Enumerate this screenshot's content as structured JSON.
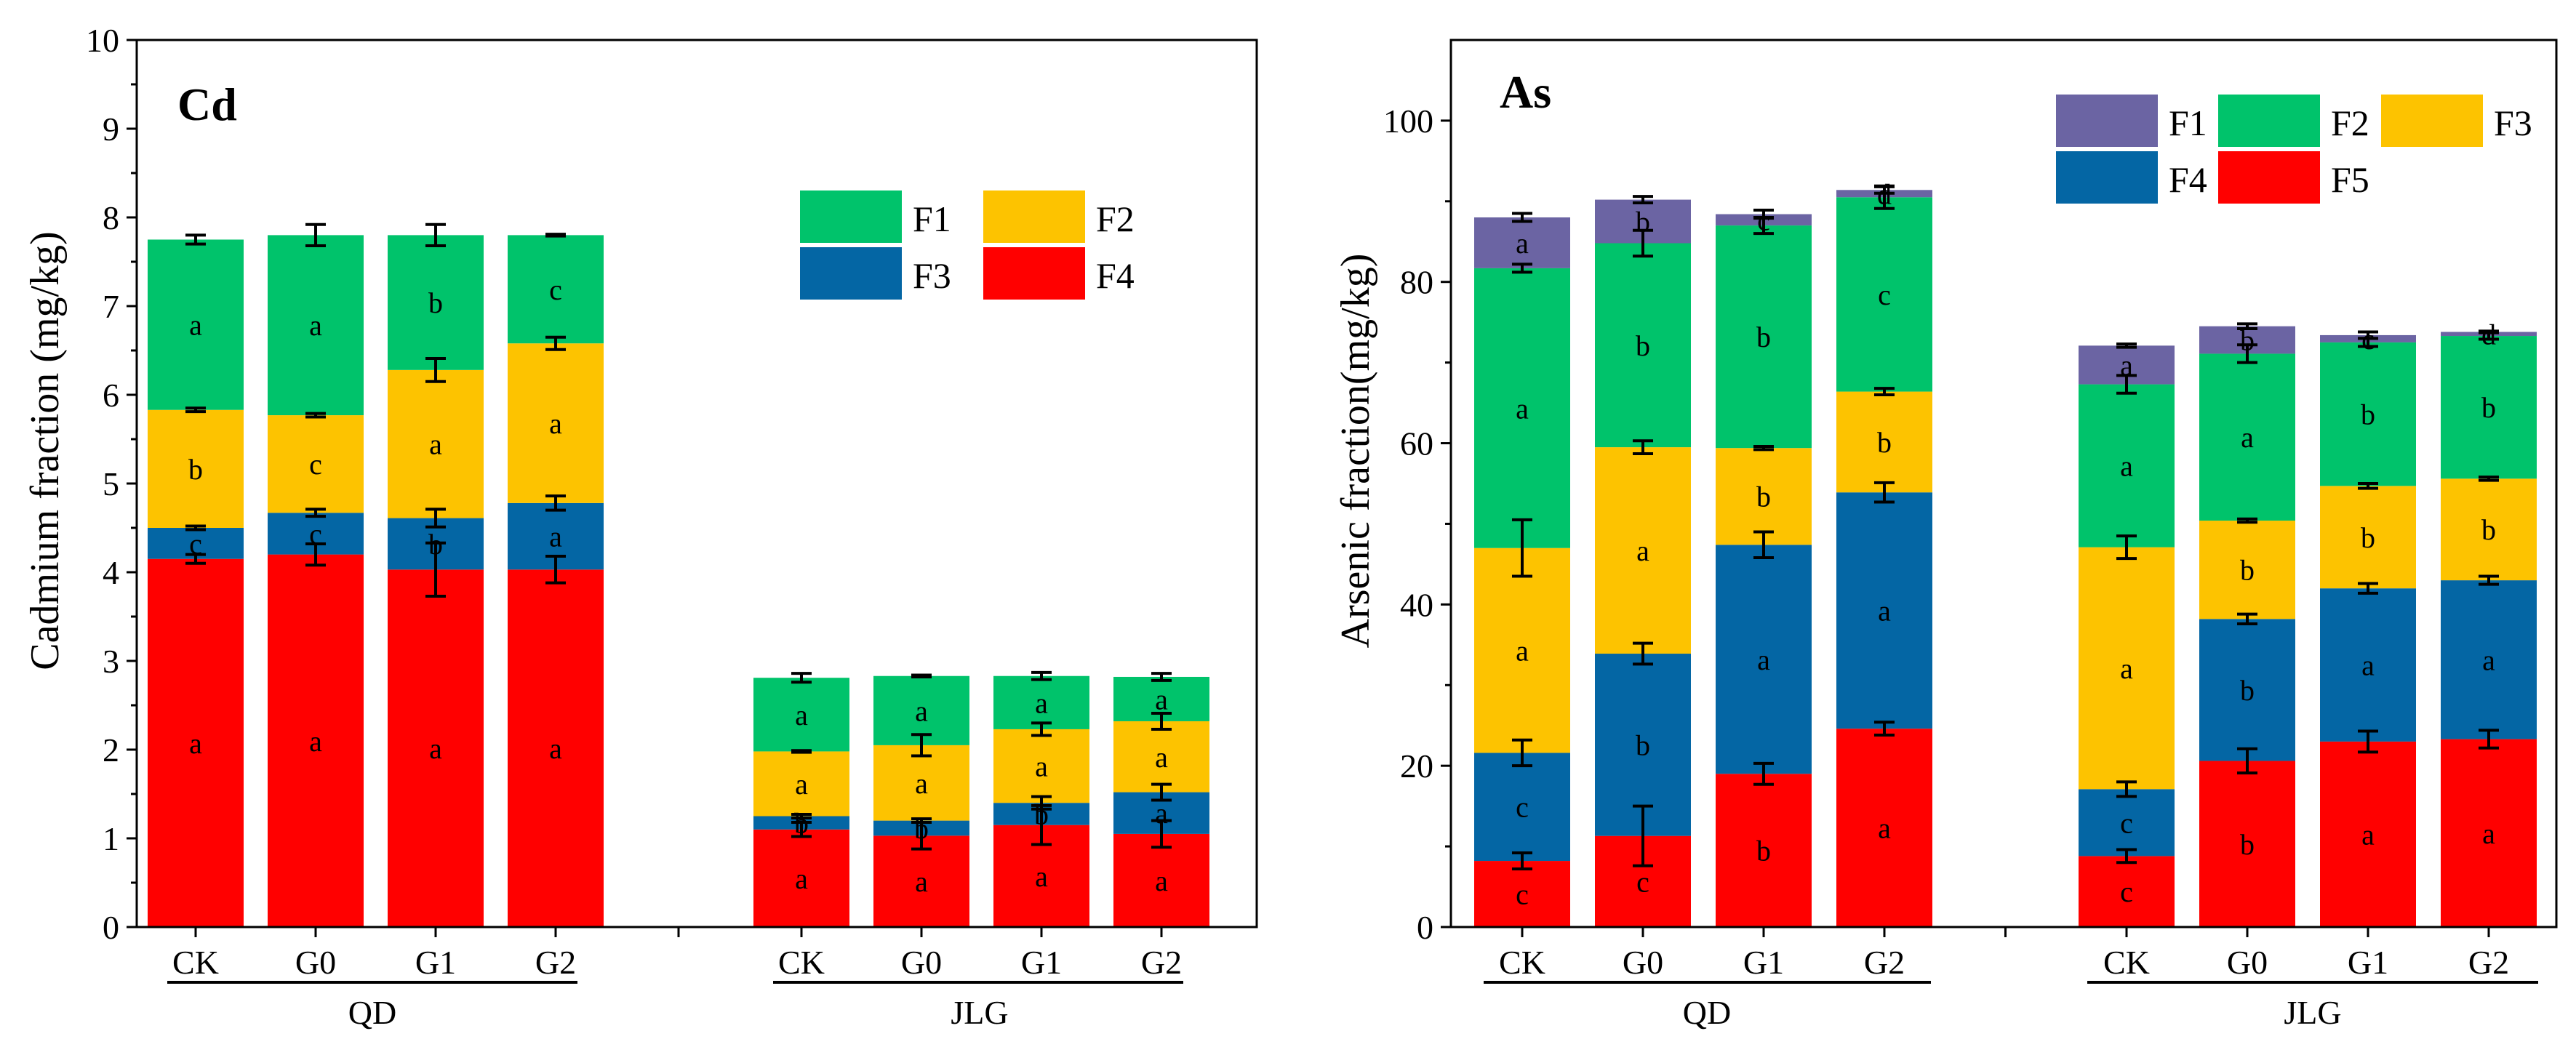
{
  "chart_data": [
    {
      "id": "cd",
      "type": "bar",
      "stacked": true,
      "title": "Cd",
      "xlabel": "",
      "ylabel": "Cadmium fraction (mg/kg)",
      "ylim": [
        0,
        10
      ],
      "yticks": [
        0,
        1,
        2,
        3,
        4,
        5,
        6,
        7,
        8,
        9,
        10
      ],
      "grid": false,
      "legend_position": "top-right",
      "groups": [
        {
          "name": "QD",
          "categories": [
            "CK",
            "G0",
            "G1",
            "G2"
          ]
        },
        {
          "name": "JLG",
          "categories": [
            "CK",
            "G0",
            "G1",
            "G2"
          ]
        }
      ],
      "series": [
        {
          "name": "F4",
          "color": "#ff0000",
          "values": [
            4.15,
            4.2,
            4.03,
            4.03,
            1.1,
            1.03,
            1.15,
            1.05
          ],
          "errors": [
            0.05,
            0.12,
            0.3,
            0.15,
            0.08,
            0.15,
            0.22,
            0.15
          ],
          "labels": [
            "a",
            "a",
            "a",
            "a",
            "a",
            "a",
            "a",
            "a"
          ]
        },
        {
          "name": "F3",
          "color": "#0466a4",
          "values": [
            0.35,
            0.47,
            0.58,
            0.75,
            0.15,
            0.17,
            0.25,
            0.47
          ],
          "errors": [
            0.02,
            0.04,
            0.1,
            0.08,
            0.02,
            0.02,
            0.07,
            0.09
          ],
          "labels": [
            "c",
            "c",
            "b",
            "a",
            "b",
            "b",
            "b",
            "a"
          ]
        },
        {
          "name": "F2",
          "color": "#fdc300",
          "values": [
            1.33,
            1.1,
            1.67,
            1.8,
            0.73,
            0.85,
            0.83,
            0.8
          ],
          "errors": [
            0.02,
            0.02,
            0.13,
            0.07,
            0.01,
            0.12,
            0.07,
            0.09
          ],
          "labels": [
            "b",
            "c",
            "a",
            "a",
            "a",
            "a",
            "a",
            "a"
          ]
        },
        {
          "name": "F1",
          "color": "#00c36b",
          "values": [
            1.92,
            2.03,
            1.52,
            1.22,
            0.83,
            0.78,
            0.6,
            0.5
          ],
          "errors": [
            0.05,
            0.12,
            0.12,
            0.01,
            0.05,
            0.01,
            0.04,
            0.04
          ],
          "labels": [
            "a",
            "a",
            "b",
            "c",
            "a",
            "a",
            "a",
            "a"
          ]
        }
      ],
      "legend_order": [
        "F1",
        "F2",
        "F3",
        "F4"
      ]
    },
    {
      "id": "as",
      "type": "bar",
      "stacked": true,
      "title": "As",
      "xlabel": "",
      "ylabel": "Arsenic fraction(mg/kg)",
      "ylim": [
        0,
        110
      ],
      "yticks": [
        0,
        20,
        40,
        60,
        80,
        100
      ],
      "grid": false,
      "legend_position": "top-right",
      "groups": [
        {
          "name": "QD",
          "categories": [
            "CK",
            "G0",
            "G1",
            "G2"
          ]
        },
        {
          "name": "JLG",
          "categories": [
            "CK",
            "G0",
            "G1",
            "G2"
          ]
        }
      ],
      "series": [
        {
          "name": "F5",
          "color": "#ff0000",
          "values": [
            8.2,
            11.3,
            19,
            24.6,
            8.8,
            20.6,
            23,
            23.3
          ],
          "errors": [
            1,
            3.7,
            1.3,
            0.8,
            0.8,
            1.5,
            1.3,
            1.1
          ],
          "labels": [
            "c",
            "c",
            "b",
            "a",
            "c",
            "b",
            "a",
            "a"
          ]
        },
        {
          "name": "F4",
          "color": "#0466a4",
          "values": [
            13.4,
            22.6,
            28.4,
            29.3,
            8.3,
            17.6,
            19,
            19.7
          ],
          "errors": [
            1.6,
            1.3,
            1.6,
            1.2,
            0.9,
            0.6,
            0.6,
            0.5
          ],
          "labels": [
            "c",
            "b",
            "a",
            "a",
            "c",
            "b",
            "a",
            "a"
          ]
        },
        {
          "name": "F3",
          "color": "#fdc300",
          "values": [
            25.4,
            25.6,
            12,
            12.5,
            30,
            12.2,
            12.7,
            12.6
          ],
          "errors": [
            3.5,
            0.8,
            0.2,
            0.4,
            1.4,
            0.2,
            0.3,
            0.2
          ],
          "labels": [
            "a",
            "a",
            "b",
            "b",
            "a",
            "b",
            "b",
            "b"
          ]
        },
        {
          "name": "F2",
          "color": "#00c36b",
          "values": [
            34.7,
            25.3,
            27.6,
            24.1,
            20.2,
            20.7,
            17.8,
            17.7
          ],
          "errors": [
            0.5,
            1.6,
            1,
            1.4,
            1.1,
            1.1,
            0.5,
            0.4
          ],
          "labels": [
            "a",
            "b",
            "b",
            "c",
            "a",
            "a",
            "b",
            "b"
          ]
        },
        {
          "name": "F1",
          "color": "#6b64a3",
          "values": [
            6.3,
            5.4,
            1.4,
            0.9,
            4.8,
            3.4,
            0.9,
            0.5
          ],
          "errors": [
            0.5,
            0.4,
            0.5,
            0.4,
            0.2,
            0.3,
            0.4,
            0.1
          ],
          "labels": [
            "a",
            "b",
            "c",
            "d",
            "a",
            "b",
            "c",
            "d"
          ]
        }
      ],
      "legend_order": [
        "F1",
        "F2",
        "F3",
        "F4",
        "F5"
      ]
    }
  ]
}
